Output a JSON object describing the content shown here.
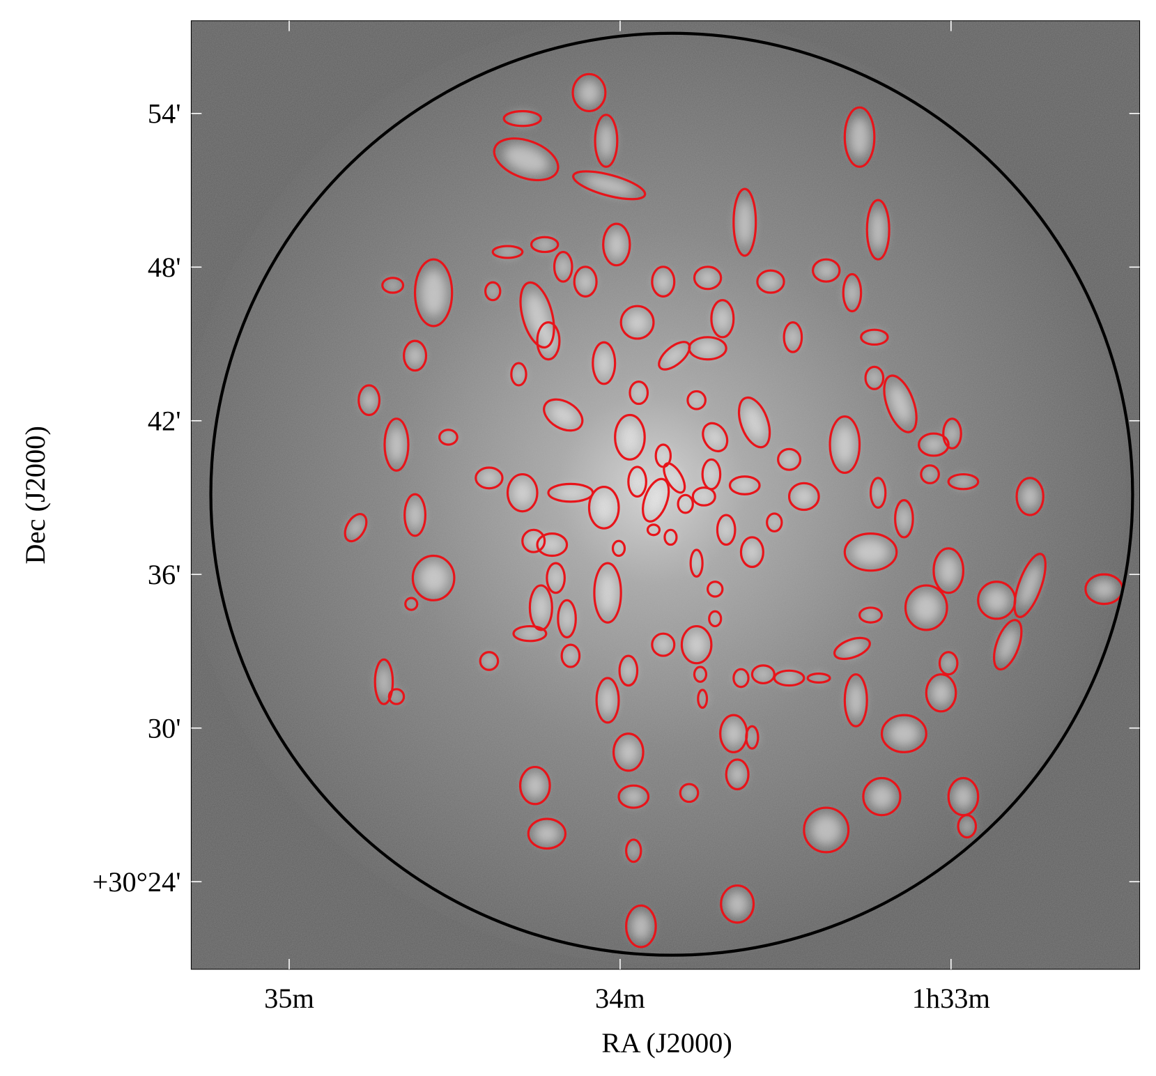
{
  "chart_data": {
    "type": "image",
    "xlabel": "RA (J2000)",
    "ylabel": "Dec (J2000)",
    "xlim": [
      35.296,
      32.43
    ],
    "ylim": [
      20.58,
      57.62
    ],
    "xticks": [
      {
        "value": 35,
        "label": "35m"
      },
      {
        "value": 34,
        "label": "34m"
      },
      {
        "value": 33,
        "label": "1h33m"
      }
    ],
    "yticks": [
      {
        "value": 24,
        "label": "+30°24'"
      },
      {
        "value": 30,
        "label": "30'"
      },
      {
        "value": 36,
        "label": "36'"
      },
      {
        "value": 42,
        "label": "42'"
      },
      {
        "value": 48,
        "label": "48'"
      },
      {
        "value": 54,
        "label": "54'"
      }
    ],
    "circle": {
      "x": 33.844,
      "y": 39.13,
      "radius": 18.0
    },
    "circle_color": "#000000",
    "contour_color": "#e8141a"
  }
}
